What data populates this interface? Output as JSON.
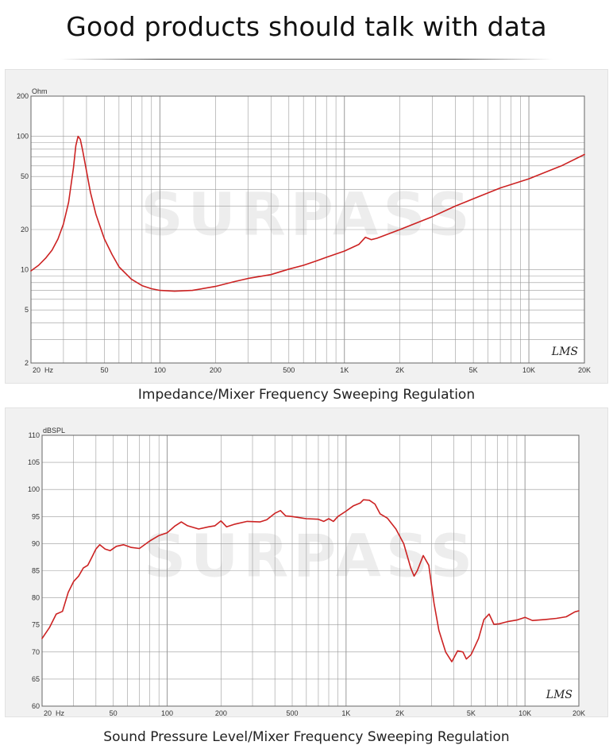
{
  "header": {
    "title": "Good products should talk with data"
  },
  "watermark": {
    "text": "SURPASS"
  },
  "captions": {
    "impedance": "Impedance/Mixer Frequency Sweeping Regulation",
    "spl": "Sound Pressure Level/Mixer Frequency Sweeping Regulation"
  },
  "chart_data": [
    {
      "type": "line",
      "ylabel": "Ohm",
      "x_scale": "log",
      "y_scale": "log",
      "xlim": [
        20,
        20000
      ],
      "ylim": [
        2,
        200
      ],
      "grid": true,
      "line_color": "#cc2222",
      "corner_label": "LMS",
      "x_ticks": [
        {
          "v": 20,
          "label": "20  Hz"
        },
        {
          "v": 50,
          "label": "50"
        },
        {
          "v": 100,
          "label": "100"
        },
        {
          "v": 200,
          "label": "200"
        },
        {
          "v": 500,
          "label": "500"
        },
        {
          "v": 1000,
          "label": "1K"
        },
        {
          "v": 2000,
          "label": "2K"
        },
        {
          "v": 5000,
          "label": "5K"
        },
        {
          "v": 10000,
          "label": "10K"
        },
        {
          "v": 20000,
          "label": "20K"
        }
      ],
      "y_ticks": [
        {
          "v": 2,
          "label": "2"
        },
        {
          "v": 5,
          "label": "5"
        },
        {
          "v": 10,
          "label": "10"
        },
        {
          "v": 20,
          "label": "20"
        },
        {
          "v": 50,
          "label": "50"
        },
        {
          "v": 100,
          "label": "100"
        },
        {
          "v": 200,
          "label": "200"
        }
      ],
      "points": [
        [
          20,
          9.8
        ],
        [
          22,
          10.8
        ],
        [
          24,
          12.2
        ],
        [
          26,
          14
        ],
        [
          28,
          17
        ],
        [
          30,
          22
        ],
        [
          32,
          32
        ],
        [
          34,
          58
        ],
        [
          35,
          85
        ],
        [
          36,
          100
        ],
        [
          37,
          95
        ],
        [
          38,
          80
        ],
        [
          40,
          55
        ],
        [
          42,
          38
        ],
        [
          45,
          26
        ],
        [
          50,
          17
        ],
        [
          55,
          13
        ],
        [
          60,
          10.5
        ],
        [
          70,
          8.5
        ],
        [
          80,
          7.6
        ],
        [
          90,
          7.2
        ],
        [
          100,
          7.0
        ],
        [
          120,
          6.9
        ],
        [
          150,
          7.0
        ],
        [
          200,
          7.5
        ],
        [
          250,
          8.1
        ],
        [
          300,
          8.6
        ],
        [
          400,
          9.2
        ],
        [
          500,
          10.1
        ],
        [
          600,
          10.8
        ],
        [
          700,
          11.6
        ],
        [
          800,
          12.4
        ],
        [
          1000,
          13.8
        ],
        [
          1200,
          15.5
        ],
        [
          1300,
          17.5
        ],
        [
          1400,
          16.8
        ],
        [
          1500,
          17.2
        ],
        [
          2000,
          20
        ],
        [
          3000,
          25
        ],
        [
          4000,
          30
        ],
        [
          5000,
          34
        ],
        [
          7000,
          41
        ],
        [
          10000,
          48
        ],
        [
          15000,
          60
        ],
        [
          20000,
          73
        ]
      ]
    },
    {
      "type": "line",
      "ylabel": "dBSPL",
      "x_scale": "log",
      "xlim": [
        20,
        20000
      ],
      "ylim": [
        60,
        110
      ],
      "grid": true,
      "line_color": "#cc2222",
      "corner_label": "LMS",
      "x_ticks": [
        {
          "v": 20,
          "label": "20  Hz"
        },
        {
          "v": 50,
          "label": "50"
        },
        {
          "v": 100,
          "label": "100"
        },
        {
          "v": 200,
          "label": "200"
        },
        {
          "v": 500,
          "label": "500"
        },
        {
          "v": 1000,
          "label": "1K"
        },
        {
          "v": 2000,
          "label": "2K"
        },
        {
          "v": 5000,
          "label": "5K"
        },
        {
          "v": 10000,
          "label": "10K"
        },
        {
          "v": 20000,
          "label": "20K"
        }
      ],
      "y_ticks": [
        {
          "v": 60,
          "label": "60"
        },
        {
          "v": 65,
          "label": "65"
        },
        {
          "v": 70,
          "label": "70"
        },
        {
          "v": 75,
          "label": "75"
        },
        {
          "v": 80,
          "label": "80"
        },
        {
          "v": 85,
          "label": "85"
        },
        {
          "v": 90,
          "label": "90"
        },
        {
          "v": 95,
          "label": "95"
        },
        {
          "v": 100,
          "label": "100"
        },
        {
          "v": 105,
          "label": "105"
        },
        {
          "v": 110,
          "label": "110"
        }
      ],
      "points": [
        [
          20,
          72.5
        ],
        [
          22,
          74.5
        ],
        [
          24,
          77
        ],
        [
          26,
          77.5
        ],
        [
          28,
          81
        ],
        [
          30,
          83
        ],
        [
          32,
          84
        ],
        [
          34,
          85.5
        ],
        [
          36,
          86
        ],
        [
          38,
          87.5
        ],
        [
          40,
          89
        ],
        [
          42,
          89.8
        ],
        [
          45,
          89
        ],
        [
          48,
          88.7
        ],
        [
          52,
          89.5
        ],
        [
          57,
          89.8
        ],
        [
          63,
          89.3
        ],
        [
          70,
          89.1
        ],
        [
          80,
          90.5
        ],
        [
          90,
          91.5
        ],
        [
          100,
          92
        ],
        [
          110,
          93.2
        ],
        [
          120,
          94
        ],
        [
          130,
          93.3
        ],
        [
          150,
          92.7
        ],
        [
          170,
          93.1
        ],
        [
          185,
          93.3
        ],
        [
          200,
          94.2
        ],
        [
          215,
          93.1
        ],
        [
          240,
          93.6
        ],
        [
          280,
          94.1
        ],
        [
          330,
          94
        ],
        [
          360,
          94.4
        ],
        [
          400,
          95.6
        ],
        [
          430,
          96.1
        ],
        [
          460,
          95.1
        ],
        [
          500,
          95
        ],
        [
          600,
          94.6
        ],
        [
          700,
          94.5
        ],
        [
          750,
          94.1
        ],
        [
          800,
          94.6
        ],
        [
          850,
          94.1
        ],
        [
          900,
          95
        ],
        [
          1000,
          96
        ],
        [
          1100,
          97
        ],
        [
          1200,
          97.5
        ],
        [
          1250,
          98.1
        ],
        [
          1350,
          98
        ],
        [
          1450,
          97.3
        ],
        [
          1550,
          95.5
        ],
        [
          1700,
          94.7
        ],
        [
          1900,
          92.7
        ],
        [
          2100,
          90
        ],
        [
          2300,
          85.5
        ],
        [
          2400,
          84
        ],
        [
          2500,
          85
        ],
        [
          2700,
          87.8
        ],
        [
          2900,
          86
        ],
        [
          3100,
          79
        ],
        [
          3300,
          74
        ],
        [
          3600,
          70
        ],
        [
          3900,
          68.2
        ],
        [
          4200,
          70.2
        ],
        [
          4500,
          70
        ],
        [
          4700,
          68.7
        ],
        [
          5000,
          69.5
        ],
        [
          5500,
          72.5
        ],
        [
          5900,
          76
        ],
        [
          6300,
          77
        ],
        [
          6700,
          75.1
        ],
        [
          7200,
          75.2
        ],
        [
          8000,
          75.6
        ],
        [
          9000,
          75.9
        ],
        [
          10000,
          76.4
        ],
        [
          11000,
          75.8
        ],
        [
          13000,
          76
        ],
        [
          15000,
          76.2
        ],
        [
          17000,
          76.5
        ],
        [
          19000,
          77.4
        ],
        [
          20000,
          77.6
        ]
      ]
    }
  ]
}
